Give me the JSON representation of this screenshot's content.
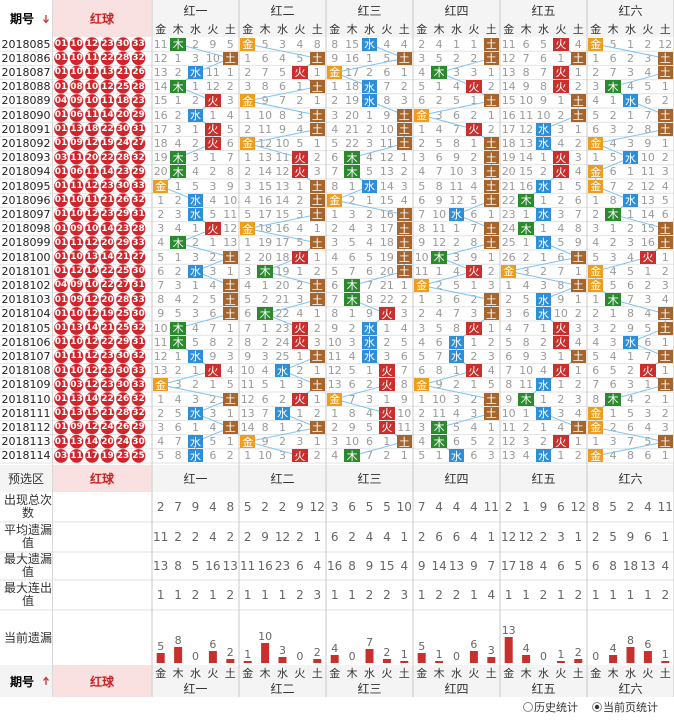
{
  "header": {
    "period": "期号",
    "red": "红球",
    "groups": [
      "红一",
      "红二",
      "红三",
      "红四",
      "红五",
      "红六"
    ],
    "elements": [
      "金",
      "木",
      "水",
      "火",
      "土"
    ]
  },
  "element_colors": [
    "#ee9d1c",
    "#2b8a2e",
    "#2d8fd9",
    "#c9302c",
    "#a5652d"
  ],
  "rows": [
    {
      "period": "2018085",
      "balls": [
        "01",
        "10",
        "12",
        "23",
        "30",
        "33"
      ],
      "cells": [
        11,
        "木",
        2,
        9,
        5,
        "金",
        5,
        3,
        4,
        8,
        8,
        15,
        "水",
        4,
        4,
        2,
        4,
        1,
        1,
        "土",
        11,
        6,
        5,
        "火",
        4,
        "金",
        5,
        1,
        2,
        12
      ]
    },
    {
      "period": "2018086",
      "balls": [
        "01",
        "10",
        "11",
        "22",
        "28",
        "32"
      ],
      "cells": [
        12,
        1,
        3,
        10,
        "土",
        1,
        6,
        4,
        5,
        "土",
        9,
        16,
        1,
        5,
        "土",
        3,
        5,
        2,
        2,
        "土",
        12,
        7,
        6,
        1,
        "土",
        1,
        6,
        2,
        3,
        "土"
      ]
    },
    {
      "period": "2018087",
      "balls": [
        "01",
        "10",
        "11",
        "13",
        "21",
        "26"
      ],
      "cells": [
        13,
        2,
        "水",
        11,
        1,
        2,
        7,
        5,
        "火",
        1,
        "金",
        17,
        2,
        6,
        1,
        4,
        "木",
        3,
        3,
        1,
        13,
        8,
        7,
        "火",
        1,
        2,
        7,
        3,
        4,
        "土"
      ]
    },
    {
      "period": "2018088",
      "balls": [
        "01",
        "08",
        "10",
        "12",
        "25",
        "28"
      ],
      "cells": [
        14,
        "木",
        1,
        12,
        2,
        3,
        8,
        6,
        1,
        "土",
        1,
        18,
        "水",
        7,
        2,
        5,
        1,
        4,
        "火",
        2,
        14,
        9,
        8,
        "火",
        2,
        3,
        "木",
        4,
        5,
        1
      ]
    },
    {
      "period": "2018089",
      "balls": [
        "04",
        "09",
        "10",
        "11",
        "18",
        "23"
      ],
      "cells": [
        15,
        1,
        2,
        "火",
        3,
        "金",
        9,
        7,
        2,
        1,
        2,
        19,
        "水",
        8,
        3,
        6,
        2,
        5,
        1,
        "土",
        15,
        10,
        9,
        1,
        "土",
        4,
        1,
        "水",
        6,
        2
      ]
    },
    {
      "period": "2018090",
      "balls": [
        "01",
        "06",
        "11",
        "14",
        "20",
        "29"
      ],
      "cells": [
        16,
        2,
        "水",
        1,
        4,
        1,
        10,
        8,
        3,
        "土",
        3,
        20,
        1,
        9,
        "土",
        "金",
        3,
        6,
        2,
        1,
        16,
        11,
        10,
        2,
        "土",
        5,
        2,
        1,
        7,
        "土"
      ]
    },
    {
      "period": "2018091",
      "balls": [
        "01",
        "13",
        "18",
        "22",
        "30",
        "31"
      ],
      "cells": [
        17,
        3,
        1,
        "火",
        5,
        2,
        11,
        9,
        4,
        "土",
        4,
        21,
        2,
        10,
        "土",
        1,
        4,
        7,
        "火",
        2,
        17,
        12,
        "水",
        3,
        1,
        6,
        3,
        2,
        8,
        "土"
      ]
    },
    {
      "period": "2018092",
      "balls": [
        "01",
        "09",
        "12",
        "19",
        "24",
        "27"
      ],
      "cells": [
        18,
        4,
        2,
        "火",
        6,
        "金",
        12,
        10,
        5,
        1,
        5,
        22,
        3,
        11,
        "土",
        2,
        5,
        8,
        1,
        "土",
        18,
        13,
        "水",
        4,
        2,
        "金",
        4,
        3,
        9,
        1
      ]
    },
    {
      "period": "2018093",
      "balls": [
        "03",
        "11",
        "20",
        "22",
        "28",
        "32"
      ],
      "cells": [
        19,
        "木",
        3,
        1,
        7,
        1,
        13,
        11,
        "火",
        2,
        6,
        "木",
        4,
        12,
        1,
        3,
        6,
        9,
        2,
        "土",
        19,
        14,
        1,
        "火",
        3,
        1,
        5,
        "水",
        10,
        2
      ]
    },
    {
      "period": "2018094",
      "balls": [
        "01",
        "06",
        "11",
        "14",
        "23",
        "29"
      ],
      "cells": [
        20,
        "木",
        4,
        2,
        8,
        2,
        14,
        12,
        "火",
        3,
        7,
        "木",
        5,
        13,
        2,
        4,
        7,
        10,
        3,
        "土",
        20,
        15,
        2,
        "火",
        4,
        "金",
        6,
        1,
        11,
        3
      ]
    },
    {
      "period": "2018095",
      "balls": [
        "01",
        "11",
        "12",
        "23",
        "30",
        "33"
      ],
      "cells": [
        "金",
        1,
        5,
        3,
        9,
        3,
        15,
        13,
        1,
        "土",
        8,
        1,
        "水",
        14,
        3,
        5,
        8,
        11,
        4,
        "土",
        21,
        16,
        "水",
        1,
        5,
        "金",
        7,
        2,
        12,
        4
      ]
    },
    {
      "period": "2018096",
      "balls": [
        "01",
        "10",
        "11",
        "21",
        "26",
        "32"
      ],
      "cells": [
        1,
        2,
        "水",
        4,
        10,
        4,
        16,
        14,
        2,
        "土",
        "金",
        2,
        1,
        15,
        4,
        6,
        9,
        12,
        5,
        "土",
        22,
        "木",
        1,
        2,
        6,
        1,
        8,
        "水",
        13,
        5
      ]
    },
    {
      "period": "2018097",
      "balls": [
        "01",
        "10",
        "12",
        "23",
        "29",
        "31"
      ],
      "cells": [
        2,
        3,
        "水",
        5,
        11,
        5,
        17,
        15,
        3,
        "土",
        1,
        3,
        2,
        16,
        "土",
        7,
        10,
        "水",
        6,
        1,
        23,
        1,
        "水",
        3,
        7,
        2,
        "木",
        1,
        14,
        6
      ]
    },
    {
      "period": "2018098",
      "balls": [
        "01",
        "09",
        "10",
        "14",
        "23",
        "28"
      ],
      "cells": [
        3,
        4,
        1,
        "火",
        12,
        "金",
        18,
        16,
        4,
        1,
        2,
        4,
        3,
        17,
        "土",
        8,
        11,
        1,
        7,
        "土",
        24,
        "木",
        1,
        4,
        8,
        3,
        1,
        2,
        15,
        "土"
      ]
    },
    {
      "period": "2018099",
      "balls": [
        "01",
        "11",
        "12",
        "20",
        "29",
        "33"
      ],
      "cells": [
        4,
        "木",
        2,
        1,
        13,
        1,
        19,
        17,
        5,
        "土",
        3,
        5,
        4,
        18,
        "土",
        9,
        12,
        2,
        8,
        "土",
        25,
        1,
        "水",
        5,
        9,
        4,
        2,
        3,
        16,
        "土"
      ]
    },
    {
      "period": "2018100",
      "balls": [
        "01",
        "10",
        "13",
        "14",
        "21",
        "27"
      ],
      "cells": [
        5,
        1,
        3,
        2,
        "土",
        2,
        20,
        18,
        "火",
        1,
        4,
        6,
        5,
        19,
        "土",
        10,
        "木",
        3,
        9,
        1,
        26,
        2,
        1,
        6,
        "土",
        5,
        3,
        4,
        "火",
        1
      ]
    },
    {
      "period": "2018101",
      "balls": [
        "01",
        "12",
        "14",
        "22",
        "25",
        "30"
      ],
      "cells": [
        6,
        2,
        "水",
        3,
        1,
        3,
        "木",
        19,
        1,
        2,
        5,
        7,
        6,
        20,
        "土",
        11,
        1,
        4,
        "火",
        2,
        "金",
        3,
        2,
        7,
        1,
        "金",
        4,
        5,
        1,
        2
      ]
    },
    {
      "period": "2018102",
      "balls": [
        "04",
        "09",
        "10",
        "22",
        "27",
        "31"
      ],
      "cells": [
        7,
        3,
        1,
        4,
        "土",
        4,
        1,
        20,
        2,
        "土",
        6,
        "木",
        7,
        21,
        1,
        "金",
        2,
        5,
        1,
        3,
        1,
        4,
        3,
        8,
        "土",
        "金",
        5,
        6,
        2,
        3
      ]
    },
    {
      "period": "2018103",
      "balls": [
        "01",
        "09",
        "12",
        "20",
        "28",
        "33"
      ],
      "cells": [
        8,
        4,
        2,
        5,
        "土",
        5,
        2,
        21,
        3,
        "土",
        7,
        "木",
        8,
        22,
        2,
        1,
        3,
        6,
        2,
        "土",
        2,
        5,
        "水",
        9,
        1,
        1,
        "木",
        7,
        3,
        4
      ]
    },
    {
      "period": "2018104",
      "balls": [
        "01",
        "10",
        "12",
        "19",
        "25",
        "30"
      ],
      "cells": [
        9,
        5,
        3,
        6,
        "土",
        6,
        "木",
        22,
        4,
        1,
        8,
        1,
        9,
        "火",
        3,
        2,
        4,
        7,
        3,
        "土",
        3,
        6,
        "水",
        10,
        2,
        2,
        1,
        8,
        4,
        "土"
      ]
    },
    {
      "period": "2018105",
      "balls": [
        "01",
        "13",
        "14",
        "21",
        "25",
        "32"
      ],
      "cells": [
        10,
        "木",
        4,
        7,
        1,
        7,
        1,
        23,
        "火",
        2,
        9,
        2,
        "水",
        1,
        4,
        3,
        5,
        8,
        "火",
        1,
        4,
        7,
        1,
        "火",
        3,
        3,
        2,
        9,
        5,
        "土"
      ]
    },
    {
      "period": "2018106",
      "balls": [
        "01",
        "10",
        "12",
        "22",
        "29",
        "31"
      ],
      "cells": [
        11,
        "木",
        5,
        8,
        2,
        8,
        2,
        24,
        "火",
        3,
        10,
        3,
        "水",
        2,
        5,
        4,
        6,
        "水",
        1,
        2,
        5,
        8,
        2,
        "火",
        4,
        4,
        3,
        "水",
        6,
        1
      ]
    },
    {
      "period": "2018107",
      "balls": [
        "01",
        "11",
        "12",
        "23",
        "30",
        "32"
      ],
      "cells": [
        12,
        1,
        "水",
        9,
        3,
        9,
        3,
        25,
        1,
        "土",
        11,
        4,
        "水",
        3,
        6,
        5,
        7,
        "水",
        2,
        3,
        6,
        9,
        3,
        1,
        "土",
        5,
        4,
        1,
        7,
        "土"
      ]
    },
    {
      "period": "2018108",
      "balls": [
        "01",
        "10",
        "12",
        "23",
        "30",
        "33"
      ],
      "cells": [
        13,
        2,
        1,
        "火",
        4,
        10,
        4,
        "水",
        2,
        1,
        12,
        5,
        1,
        "火",
        7,
        6,
        8,
        1,
        "火",
        4,
        7,
        10,
        4,
        "火",
        1,
        6,
        5,
        2,
        "火",
        1
      ]
    },
    {
      "period": "2018109",
      "balls": [
        "01",
        "03",
        "12",
        "23",
        "30",
        "33"
      ],
      "cells": [
        "金",
        3,
        2,
        1,
        5,
        11,
        5,
        1,
        3,
        "土",
        13,
        6,
        2,
        "火",
        8,
        "金",
        9,
        2,
        1,
        5,
        8,
        11,
        "水",
        1,
        2,
        7,
        6,
        3,
        1,
        "土"
      ]
    },
    {
      "period": "2018110",
      "balls": [
        "01",
        "13",
        "14",
        "22",
        "26",
        "32"
      ],
      "cells": [
        1,
        4,
        3,
        2,
        "土",
        12,
        6,
        2,
        "火",
        1,
        "金",
        7,
        3,
        1,
        9,
        1,
        10,
        3,
        2,
        "土",
        9,
        "木",
        1,
        2,
        3,
        8,
        "木",
        4,
        2,
        1
      ]
    },
    {
      "period": "2018111",
      "balls": [
        "01",
        "13",
        "15",
        "21",
        "28",
        "32"
      ],
      "cells": [
        2,
        5,
        "水",
        3,
        1,
        13,
        7,
        "水",
        1,
        2,
        1,
        8,
        4,
        "火",
        10,
        2,
        11,
        4,
        3,
        "土",
        10,
        1,
        "水",
        3,
        4,
        "金",
        1,
        5,
        3,
        2
      ]
    },
    {
      "period": "2018112",
      "balls": [
        "01",
        "09",
        "12",
        "24",
        "26",
        "29"
      ],
      "cells": [
        3,
        6,
        1,
        4,
        "土",
        14,
        8,
        1,
        2,
        "土",
        2,
        9,
        5,
        "火",
        11,
        3,
        "木",
        5,
        4,
        1,
        11,
        2,
        1,
        4,
        "土",
        "金",
        2,
        6,
        4,
        3
      ]
    },
    {
      "period": "2018113",
      "balls": [
        "01",
        "13",
        "14",
        "20",
        "24",
        "30"
      ],
      "cells": [
        4,
        7,
        "水",
        5,
        1,
        "金",
        9,
        2,
        3,
        1,
        3,
        10,
        6,
        1,
        "土",
        4,
        "木",
        6,
        5,
        2,
        12,
        3,
        2,
        "火",
        1,
        1,
        3,
        7,
        5,
        "土"
      ]
    },
    {
      "period": "2018114",
      "balls": [
        "03",
        "11",
        "17",
        "19",
        "23",
        "25"
      ],
      "cells": [
        5,
        8,
        "水",
        6,
        2,
        1,
        10,
        3,
        "火",
        2,
        4,
        "木",
        7,
        2,
        1,
        5,
        1,
        "水",
        6,
        3,
        13,
        4,
        "水",
        1,
        2,
        "金",
        4,
        8,
        6,
        1
      ]
    }
  ],
  "preselect": {
    "label": "预选区",
    "red": "红球"
  },
  "stats": [
    {
      "label": "出现总次数",
      "values": [
        2,
        7,
        9,
        4,
        8,
        5,
        2,
        2,
        9,
        12,
        3,
        6,
        5,
        5,
        10,
        7,
        4,
        4,
        4,
        11,
        2,
        1,
        9,
        6,
        12,
        8,
        5,
        2,
        4,
        11
      ]
    },
    {
      "label": "平均遗漏值",
      "values": [
        11,
        2,
        2,
        4,
        2,
        2,
        9,
        12,
        2,
        1,
        6,
        2,
        4,
        4,
        1,
        2,
        6,
        6,
        4,
        1,
        12,
        12,
        2,
        3,
        1,
        2,
        5,
        9,
        6,
        1
      ]
    },
    {
      "label": "最大遗漏值",
      "values": [
        13,
        8,
        5,
        16,
        13,
        11,
        16,
        23,
        6,
        4,
        16,
        8,
        9,
        15,
        4,
        9,
        14,
        13,
        9,
        7,
        17,
        18,
        4,
        6,
        5,
        6,
        8,
        18,
        13,
        4
      ]
    },
    {
      "label": "最大连出值",
      "values": [
        1,
        1,
        2,
        1,
        2,
        1,
        1,
        1,
        2,
        3,
        1,
        1,
        2,
        2,
        3,
        1,
        2,
        2,
        1,
        4,
        1,
        1,
        2,
        1,
        2,
        1,
        1,
        1,
        1,
        2
      ]
    }
  ],
  "current_miss": {
    "label": "当前遗漏",
    "values": [
      5,
      8,
      0,
      6,
      2,
      1,
      10,
      3,
      0,
      2,
      4,
      0,
      7,
      2,
      1,
      5,
      1,
      0,
      6,
      3,
      13,
      4,
      0,
      1,
      2,
      0,
      4,
      8,
      6,
      1
    ]
  },
  "footer": {
    "period": "期号",
    "red": "红球"
  },
  "legend": {
    "history": "历史统计",
    "current": "当前页统计"
  }
}
